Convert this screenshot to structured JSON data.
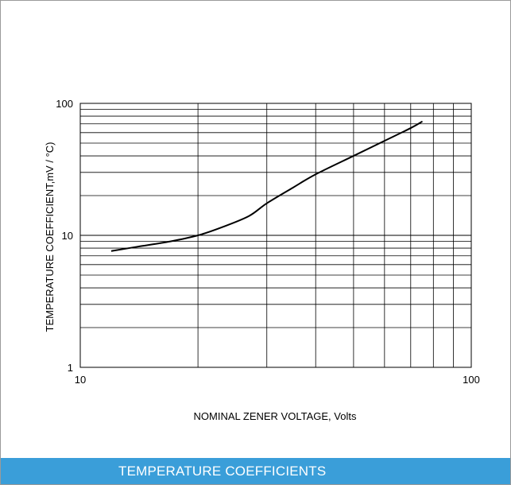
{
  "caption": "TEMPERATURE COEFFICIENTS",
  "colors": {
    "caption_bg": "#3a9ed9",
    "caption_text": "#ffffff",
    "curve": "#000000",
    "grid": "#000000"
  },
  "chart_data": {
    "type": "line",
    "title": "",
    "xlabel": "NOMINAL ZENER VOLTAGE, Volts",
    "ylabel": "TEMPERATURE COEFFICIENT,mV / °C)",
    "xscale": "log",
    "yscale": "log",
    "xlim": [
      10,
      100
    ],
    "ylim": [
      1,
      100
    ],
    "xticks": [
      "10",
      "100"
    ],
    "yticks": [
      "1",
      "10",
      "100"
    ],
    "grid": true,
    "legend": "none",
    "series": [
      {
        "x": [
          12,
          14,
          17,
          20,
          23,
          27,
          30,
          35,
          40,
          50,
          60,
          70,
          75
        ],
        "y": [
          7.6,
          8.2,
          9.0,
          10.0,
          11.5,
          14.0,
          17.5,
          23.0,
          29.0,
          40.0,
          52.0,
          65.0,
          73.0
        ]
      }
    ]
  }
}
